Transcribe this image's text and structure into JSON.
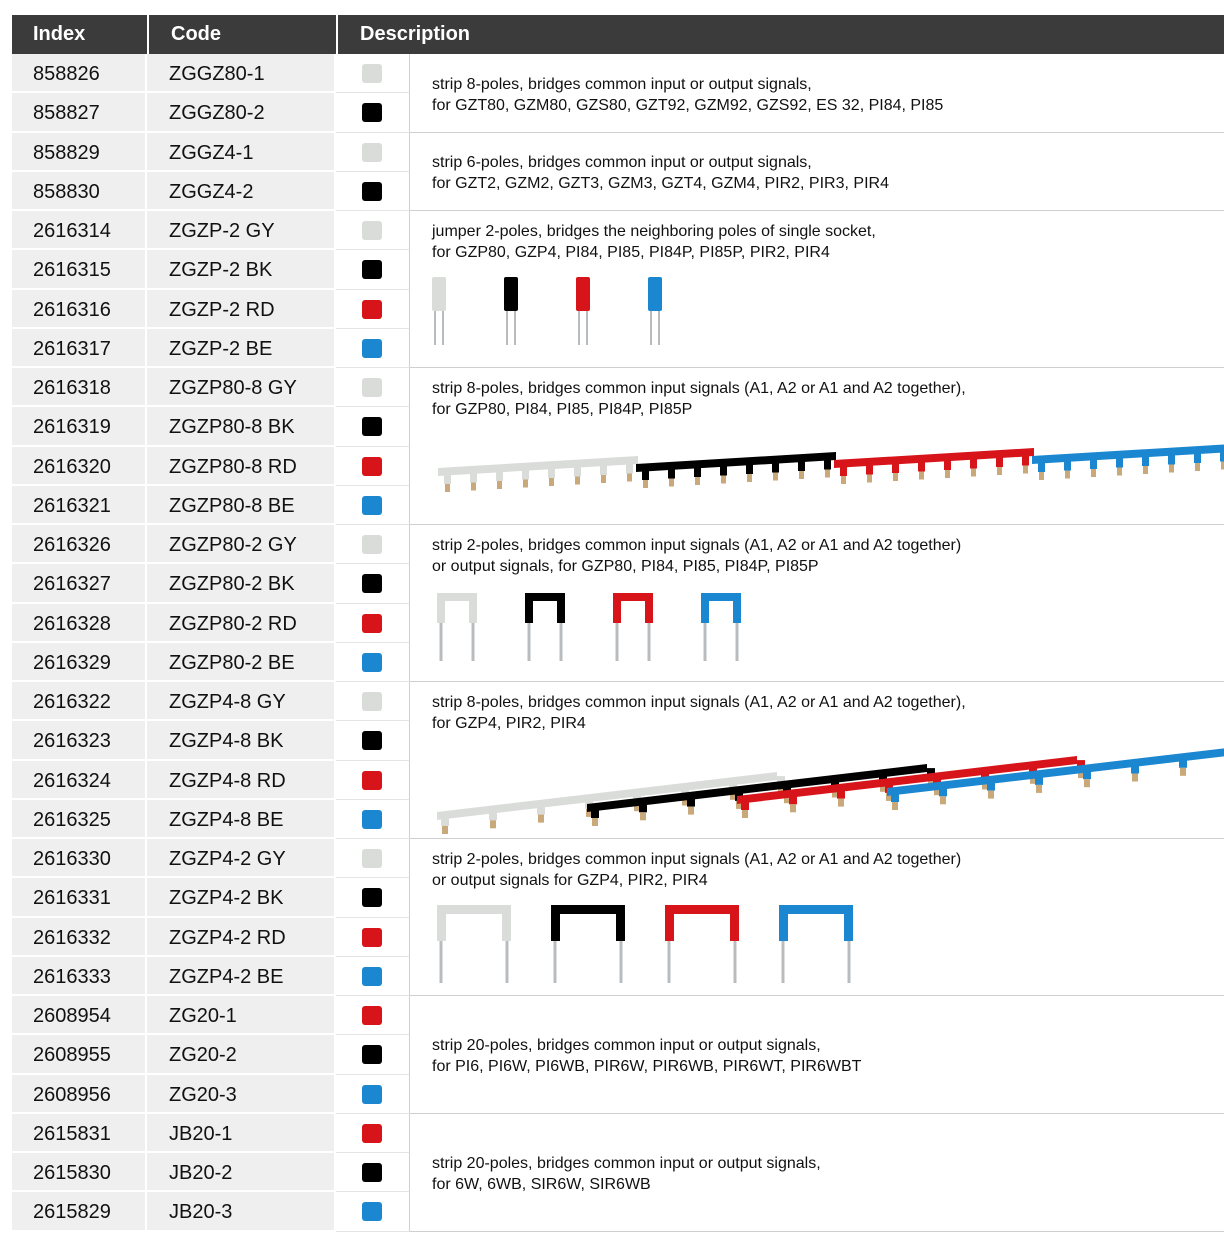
{
  "table": {
    "header": [
      "Index",
      "Code",
      "Description"
    ],
    "groups": [
      {
        "rows": [
          {
            "index": "858826",
            "code": "ZGGZ80-1",
            "color": "#d9dcd9"
          },
          {
            "index": "858827",
            "code": "ZGGZ80-2",
            "color": "#000000"
          }
        ],
        "description": [
          "strip 8-poles, bridges common input or output signals,",
          "for GZT80, GZM80, GZS80, GZT92, GZM92, GZS92, ES 32, PI84, PI85"
        ]
      },
      {
        "rows": [
          {
            "index": "858829",
            "code": "ZGGZ4-1",
            "color": "#d9dcd9"
          },
          {
            "index": "858830",
            "code": "ZGGZ4-2",
            "color": "#000000"
          }
        ],
        "description": [
          "strip 6-poles, bridges common input or output signals,",
          "for GZT2, GZM2, GZT3, GZM3, GZT4, GZM4, PIR2, PIR3, PIR4"
        ]
      },
      {
        "rows": [
          {
            "index": "2616314",
            "code": "ZGZP-2 GY",
            "color": "#d9dcd9"
          },
          {
            "index": "2616315",
            "code": "ZGZP-2 BK",
            "color": "#000000"
          },
          {
            "index": "2616316",
            "code": "ZGZP-2 RD",
            "color": "#d7141a"
          },
          {
            "index": "2616317",
            "code": "ZGZP-2 BE",
            "color": "#1b87d0"
          }
        ],
        "description": [
          "jumper 2-poles, bridges the neighboring poles of single socket,",
          "for GZP80, GZP4, PI84, PI85, PI84P, PI85P, PIR2, PIR4"
        ]
      },
      {
        "rows": [
          {
            "index": "2616318",
            "code": "ZGZP80-8 GY",
            "color": "#d9dcd9"
          },
          {
            "index": "2616319",
            "code": "ZGZP80-8 BK",
            "color": "#000000"
          },
          {
            "index": "2616320",
            "code": "ZGZP80-8 RD",
            "color": "#d7141a"
          },
          {
            "index": "2616321",
            "code": "ZGZP80-8 BE",
            "color": "#1b87d0"
          }
        ],
        "description": [
          "strip 8-poles, bridges common input signals (A1, A2 or A1 and A2 together),",
          "for GZP80, PI84, PI85, PI84P, PI85P"
        ]
      },
      {
        "rows": [
          {
            "index": "2616326",
            "code": "ZGZP80-2 GY",
            "color": "#d9dcd9"
          },
          {
            "index": "2616327",
            "code": "ZGZP80-2 BK",
            "color": "#000000"
          },
          {
            "index": "2616328",
            "code": "ZGZP80-2 RD",
            "color": "#d7141a"
          },
          {
            "index": "2616329",
            "code": "ZGZP80-2 BE",
            "color": "#1b87d0"
          }
        ],
        "description": [
          "strip 2-poles, bridges common input signals (A1, A2 or A1 and A2 together)",
          "or output signals, for GZP80, PI84, PI85, PI84P, PI85P"
        ]
      },
      {
        "rows": [
          {
            "index": "2616322",
            "code": "ZGZP4-8 GY",
            "color": "#d9dcd9"
          },
          {
            "index": "2616323",
            "code": "ZGZP4-8 BK",
            "color": "#000000"
          },
          {
            "index": "2616324",
            "code": "ZGZP4-8 RD",
            "color": "#d7141a"
          },
          {
            "index": "2616325",
            "code": "ZGZP4-8 BE",
            "color": "#1b87d0"
          }
        ],
        "description": [
          "strip 8-poles, bridges common input signals (A1, A2 or A1 and A2 together),",
          "for GZP4, PIR2, PIR4"
        ]
      },
      {
        "rows": [
          {
            "index": "2616330",
            "code": "ZGZP4-2 GY",
            "color": "#d9dcd9"
          },
          {
            "index": "2616331",
            "code": "ZGZP4-2 BK",
            "color": "#000000"
          },
          {
            "index": "2616332",
            "code": "ZGZP4-2 RD",
            "color": "#d7141a"
          },
          {
            "index": "2616333",
            "code": "ZGZP4-2 BE",
            "color": "#1b87d0"
          }
        ],
        "description": [
          "strip 2-poles, bridges common input signals (A1, A2 or A1 and A2 together)",
          "or output signals for GZP4, PIR2, PIR4"
        ]
      },
      {
        "rows": [
          {
            "index": "2608954",
            "code": "ZG20-1",
            "color": "#d7141a"
          },
          {
            "index": "2608955",
            "code": "ZG20-2",
            "color": "#000000"
          },
          {
            "index": "2608956",
            "code": "ZG20-3",
            "color": "#1b87d0"
          }
        ],
        "description": [
          "strip 20-poles, bridges common input or output signals,",
          "for PI6, PI6W, PI6WB, PIR6W, PIR6WB, PIR6WT, PIR6WBT"
        ]
      },
      {
        "rows": [
          {
            "index": "2615831",
            "code": "JB20-1",
            "color": "#d7141a"
          },
          {
            "index": "2615830",
            "code": "JB20-2",
            "color": "#000000"
          },
          {
            "index": "2615829",
            "code": "JB20-3",
            "color": "#1b87d0"
          }
        ],
        "description": [
          "strip 20-poles, bridges common input or output signals,",
          "for 6W, 6WB, SIR6W, SIR6WB"
        ]
      }
    ]
  }
}
